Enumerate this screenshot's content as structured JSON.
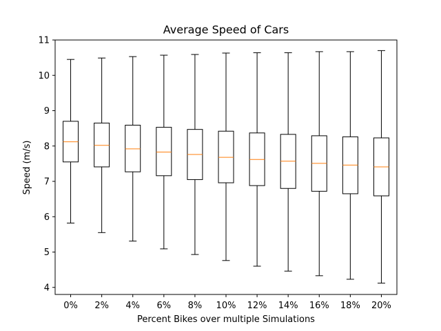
{
  "chart_data": {
    "type": "boxplot",
    "title": "Average Speed of Cars",
    "xlabel": "Percent Bikes over multiple Simulations",
    "ylabel": "Speed (m/s)",
    "ylim": [
      3.8,
      11.0
    ],
    "yticks": [
      4,
      5,
      6,
      7,
      8,
      9,
      10,
      11
    ],
    "grid": false,
    "colors": {
      "box": "#000000",
      "median": "#ff7f0e",
      "background": "#ffffff"
    },
    "categories": [
      "0%",
      "2%",
      "4%",
      "6%",
      "8%",
      "10%",
      "12%",
      "14%",
      "16%",
      "18%",
      "20%"
    ],
    "boxes": [
      {
        "whisker_low": 5.82,
        "q1": 7.55,
        "median": 8.12,
        "q3": 8.7,
        "whisker_high": 10.45
      },
      {
        "whisker_low": 5.55,
        "q1": 7.41,
        "median": 8.02,
        "q3": 8.65,
        "whisker_high": 10.49
      },
      {
        "whisker_low": 5.31,
        "q1": 7.27,
        "median": 7.92,
        "q3": 8.59,
        "whisker_high": 10.53
      },
      {
        "whisker_low": 5.09,
        "q1": 7.16,
        "median": 7.83,
        "q3": 8.53,
        "whisker_high": 10.57
      },
      {
        "whisker_low": 4.93,
        "q1": 7.05,
        "median": 7.76,
        "q3": 8.47,
        "whisker_high": 10.59
      },
      {
        "whisker_low": 4.76,
        "q1": 6.96,
        "median": 7.68,
        "q3": 8.42,
        "whisker_high": 10.63
      },
      {
        "whisker_low": 4.6,
        "q1": 6.88,
        "median": 7.62,
        "q3": 8.37,
        "whisker_high": 10.64
      },
      {
        "whisker_low": 4.46,
        "q1": 6.8,
        "median": 7.57,
        "q3": 8.33,
        "whisker_high": 10.64
      },
      {
        "whisker_low": 4.33,
        "q1": 6.72,
        "median": 7.51,
        "q3": 8.29,
        "whisker_high": 10.67
      },
      {
        "whisker_low": 4.23,
        "q1": 6.65,
        "median": 7.46,
        "q3": 8.26,
        "whisker_high": 10.67
      },
      {
        "whisker_low": 4.12,
        "q1": 6.59,
        "median": 7.41,
        "q3": 8.23,
        "whisker_high": 10.7
      }
    ]
  }
}
